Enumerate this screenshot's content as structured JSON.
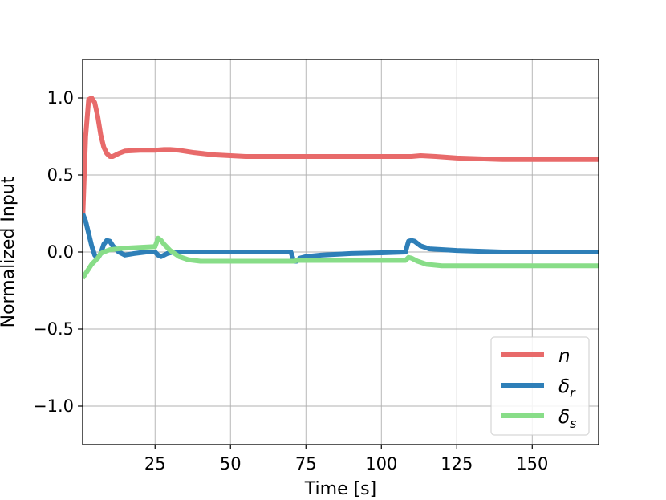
{
  "chart_data": {
    "type": "line",
    "title": "",
    "xlabel": "Time [s]",
    "ylabel": "Normalized Input",
    "xlim": [
      1,
      172
    ],
    "ylim": [
      -1.25,
      1.25
    ],
    "xticks": [
      25,
      50,
      75,
      100,
      125,
      150
    ],
    "xtick_labels": [
      "25",
      "50",
      "75",
      "100",
      "125",
      "150"
    ],
    "yticks": [
      -1.0,
      -0.5,
      0.0,
      0.5,
      1.0
    ],
    "ytick_labels": [
      "−1.0",
      "−0.5",
      "0.0",
      "0.5",
      "1.0"
    ],
    "grid": true,
    "legend_position": "bottom-right",
    "series": [
      {
        "name": "n",
        "color": "#e86a6a",
        "points": [
          [
            1,
            0.2
          ],
          [
            2,
            0.75
          ],
          [
            3,
            0.99
          ],
          [
            4,
            1.0
          ],
          [
            5,
            0.97
          ],
          [
            6,
            0.88
          ],
          [
            7,
            0.76
          ],
          [
            8,
            0.68
          ],
          [
            9,
            0.64
          ],
          [
            10,
            0.62
          ],
          [
            11,
            0.62
          ],
          [
            13,
            0.64
          ],
          [
            15,
            0.655
          ],
          [
            20,
            0.66
          ],
          [
            25,
            0.66
          ],
          [
            28,
            0.665
          ],
          [
            30,
            0.665
          ],
          [
            33,
            0.66
          ],
          [
            38,
            0.645
          ],
          [
            45,
            0.63
          ],
          [
            55,
            0.62
          ],
          [
            70,
            0.62
          ],
          [
            75,
            0.62
          ],
          [
            90,
            0.62
          ],
          [
            105,
            0.62
          ],
          [
            110,
            0.62
          ],
          [
            113,
            0.625
          ],
          [
            118,
            0.62
          ],
          [
            125,
            0.61
          ],
          [
            140,
            0.6
          ],
          [
            172,
            0.6
          ]
        ]
      },
      {
        "name": "δ",
        "sub": "r",
        "color": "#2e7fb8",
        "points": [
          [
            1,
            0.25
          ],
          [
            2,
            0.2
          ],
          [
            3,
            0.12
          ],
          [
            4,
            0.04
          ],
          [
            5,
            -0.02
          ],
          [
            6,
            -0.04
          ],
          [
            7,
            -0.01
          ],
          [
            8,
            0.05
          ],
          [
            9,
            0.075
          ],
          [
            10,
            0.07
          ],
          [
            11,
            0.04
          ],
          [
            13,
            0.0
          ],
          [
            15,
            -0.02
          ],
          [
            18,
            -0.01
          ],
          [
            22,
            0.0
          ],
          [
            25,
            0.0
          ],
          [
            26,
            -0.02
          ],
          [
            27,
            -0.03
          ],
          [
            29,
            -0.01
          ],
          [
            31,
            0.0
          ],
          [
            70,
            0.0
          ],
          [
            71,
            -0.06
          ],
          [
            72,
            -0.06
          ],
          [
            73,
            -0.04
          ],
          [
            75,
            -0.03
          ],
          [
            80,
            -0.02
          ],
          [
            90,
            -0.01
          ],
          [
            100,
            -0.005
          ],
          [
            108,
            0.0
          ],
          [
            109,
            0.07
          ],
          [
            110,
            0.075
          ],
          [
            111,
            0.07
          ],
          [
            113,
            0.04
          ],
          [
            116,
            0.02
          ],
          [
            125,
            0.01
          ],
          [
            140,
            0.0
          ],
          [
            172,
            0.0
          ]
        ]
      },
      {
        "name": "δ",
        "sub": "s",
        "color": "#88dd88",
        "points": [
          [
            1,
            -0.17
          ],
          [
            2,
            -0.14
          ],
          [
            3,
            -0.11
          ],
          [
            4,
            -0.08
          ],
          [
            5,
            -0.06
          ],
          [
            6,
            -0.04
          ],
          [
            7,
            -0.01
          ],
          [
            8,
            0.0
          ],
          [
            10,
            0.015
          ],
          [
            15,
            0.025
          ],
          [
            20,
            0.03
          ],
          [
            25,
            0.035
          ],
          [
            26,
            0.09
          ],
          [
            27,
            0.075
          ],
          [
            28,
            0.05
          ],
          [
            30,
            0.01
          ],
          [
            33,
            -0.03
          ],
          [
            36,
            -0.05
          ],
          [
            40,
            -0.06
          ],
          [
            50,
            -0.06
          ],
          [
            70,
            -0.06
          ],
          [
            71,
            -0.06
          ],
          [
            72,
            -0.055
          ],
          [
            80,
            -0.055
          ],
          [
            100,
            -0.055
          ],
          [
            108,
            -0.055
          ],
          [
            109,
            -0.035
          ],
          [
            110,
            -0.04
          ],
          [
            112,
            -0.06
          ],
          [
            115,
            -0.08
          ],
          [
            120,
            -0.09
          ],
          [
            135,
            -0.09
          ],
          [
            172,
            -0.09
          ]
        ]
      }
    ]
  }
}
